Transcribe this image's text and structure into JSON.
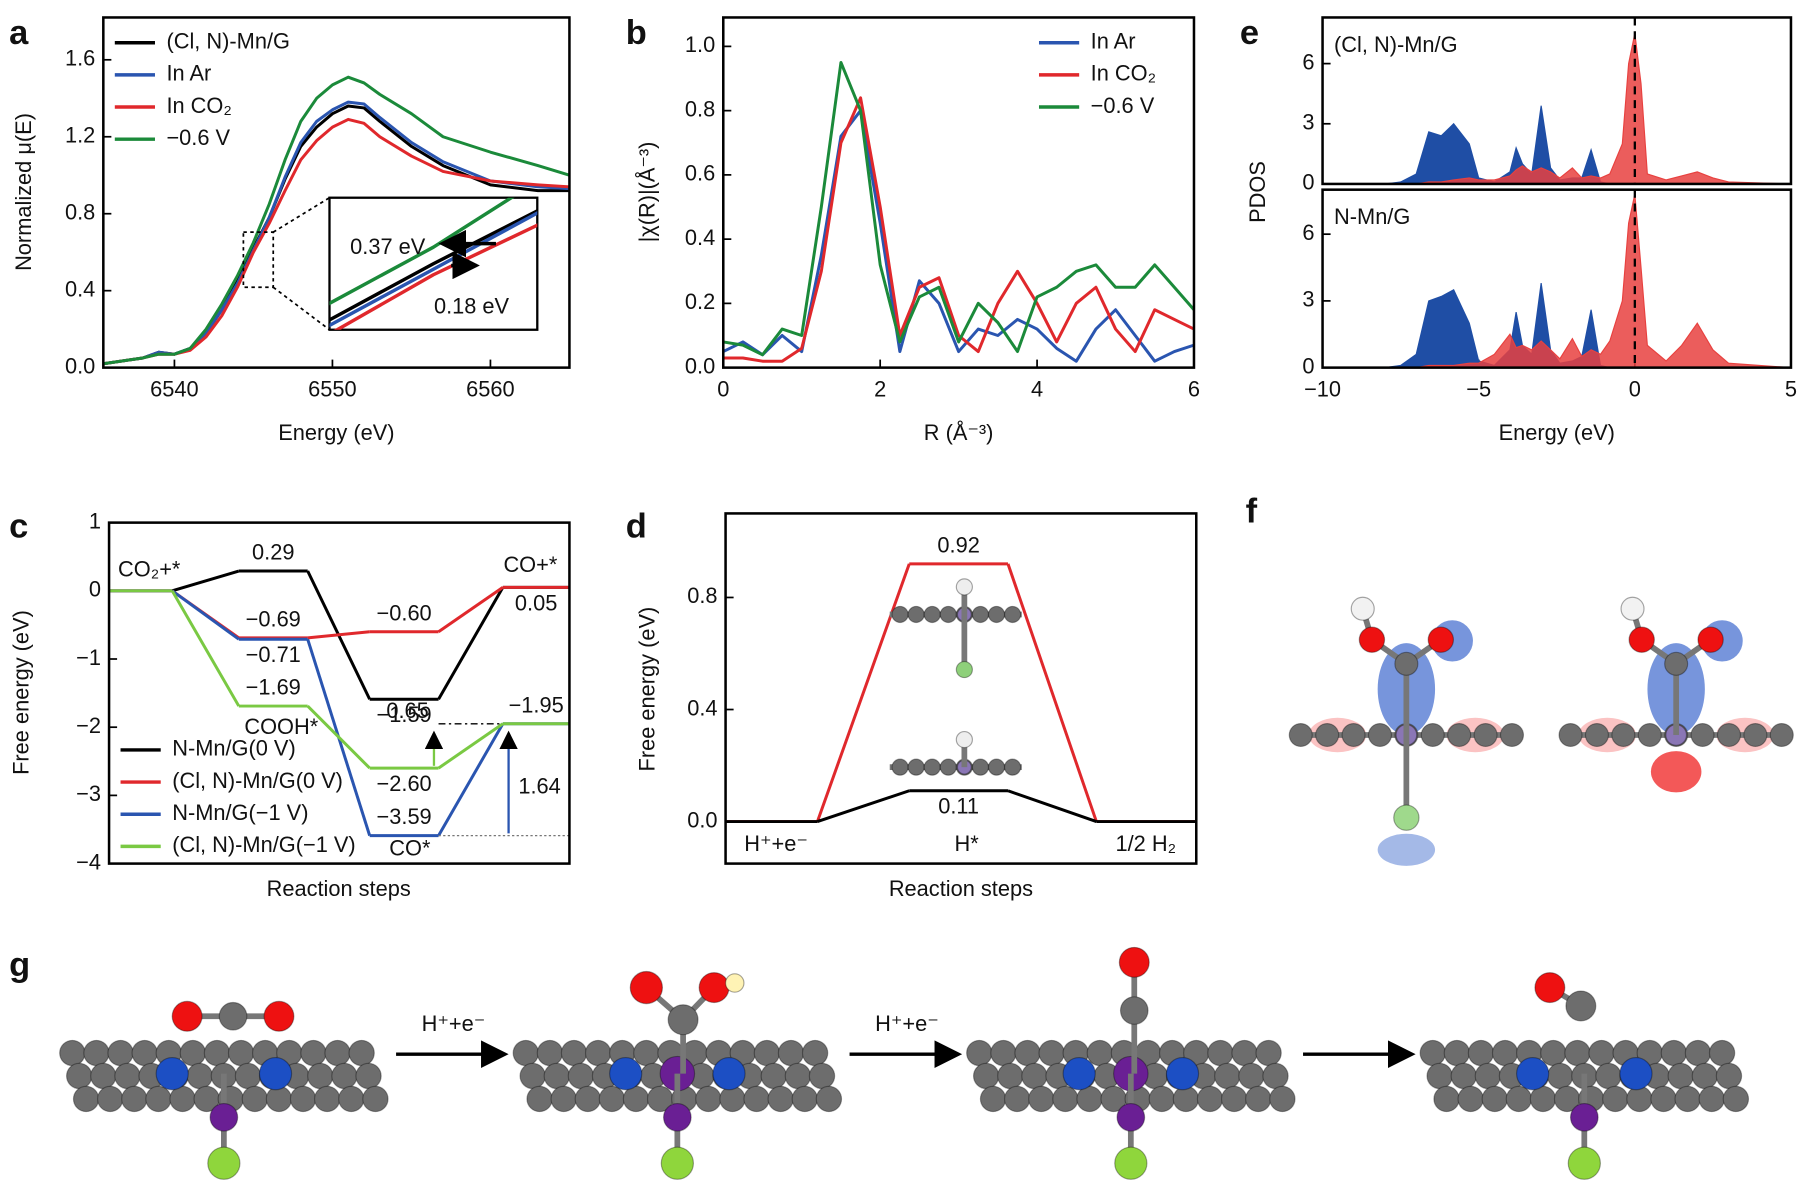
{
  "chart_data": [
    {
      "type": "line",
      "panel": "a",
      "xlabel": "Energy (eV)",
      "ylabel": "Normalized μ(E)",
      "x": [
        6535.5,
        6538,
        6539,
        6540,
        6541,
        6542,
        6543,
        6544,
        6545,
        6546,
        6547,
        6548,
        6549,
        6550,
        6551,
        6552,
        6553,
        6555,
        6557,
        6560,
        6563,
        6565
      ],
      "xlim": [
        6535.5,
        6565
      ],
      "xticks": [
        6540,
        6550,
        6560
      ],
      "ylim": [
        0,
        1.82
      ],
      "yticks": [
        {
          "value": 0,
          "label": "0.0"
        },
        0.4,
        0.8,
        1.2,
        1.6
      ],
      "legend": "upper left",
      "series": [
        {
          "name": "(Cl, N)-Mn/G",
          "color": "#000000",
          "values": [
            0.02,
            0.05,
            0.08,
            0.07,
            0.1,
            0.18,
            0.3,
            0.45,
            0.62,
            0.78,
            0.98,
            1.15,
            1.25,
            1.32,
            1.36,
            1.35,
            1.28,
            1.15,
            1.05,
            0.95,
            0.92,
            0.92
          ]
        },
        {
          "name": "In Ar",
          "color": "#2a55b0",
          "values": [
            0.02,
            0.05,
            0.08,
            0.07,
            0.1,
            0.18,
            0.3,
            0.44,
            0.61,
            0.78,
            0.99,
            1.17,
            1.28,
            1.34,
            1.38,
            1.37,
            1.3,
            1.17,
            1.07,
            0.97,
            0.94,
            0.93
          ]
        },
        {
          "name": "In CO₂",
          "color": "#e0282c",
          "values": [
            0.02,
            0.05,
            0.07,
            0.07,
            0.09,
            0.16,
            0.27,
            0.42,
            0.6,
            0.75,
            0.92,
            1.08,
            1.18,
            1.25,
            1.29,
            1.27,
            1.2,
            1.1,
            1.02,
            0.97,
            0.95,
            0.94
          ]
        },
        {
          "name": "−0.6 V",
          "color": "#1b8a3a",
          "values": [
            0.02,
            0.05,
            0.07,
            0.07,
            0.1,
            0.2,
            0.33,
            0.48,
            0.65,
            0.85,
            1.08,
            1.28,
            1.4,
            1.47,
            1.51,
            1.48,
            1.42,
            1.32,
            1.2,
            1.12,
            1.05,
            1.0
          ]
        }
      ],
      "inset": {
        "xlim": [
          6544.4,
          6545.6
        ],
        "ylim": [
          0.5,
          0.74
        ]
      },
      "annotations": [
        "0.37 eV",
        "0.18 eV"
      ]
    },
    {
      "type": "line",
      "panel": "b",
      "xlabel": "R (Å⁻³)",
      "ylabel": "|χ(R)|(Å⁻³)",
      "x": [
        0,
        0.25,
        0.5,
        0.75,
        1,
        1.25,
        1.5,
        1.75,
        2,
        2.25,
        2.5,
        2.75,
        3,
        3.25,
        3.5,
        3.75,
        4,
        4.25,
        4.5,
        4.75,
        5,
        5.25,
        5.5,
        5.75,
        6
      ],
      "xlim": [
        0,
        6
      ],
      "xticks": [
        0,
        2,
        4,
        6
      ],
      "ylim": [
        0,
        1.09
      ],
      "yticks": [
        {
          "value": 0,
          "label": "0.0"
        },
        0.2,
        0.4,
        0.6,
        0.8,
        {
          "value": 1,
          "label": "1.0"
        }
      ],
      "legend": "upper right",
      "series": [
        {
          "name": "In Ar",
          "color": "#2a55b0",
          "values": [
            0.05,
            0.08,
            0.04,
            0.1,
            0.05,
            0.35,
            0.72,
            0.8,
            0.45,
            0.05,
            0.27,
            0.2,
            0.05,
            0.12,
            0.1,
            0.15,
            0.12,
            0.06,
            0.02,
            0.12,
            0.18,
            0.1,
            0.02,
            0.05,
            0.07
          ]
        },
        {
          "name": "In CO₂",
          "color": "#e0282c",
          "values": [
            0.03,
            0.03,
            0.02,
            0.02,
            0.06,
            0.3,
            0.7,
            0.84,
            0.5,
            0.1,
            0.25,
            0.28,
            0.1,
            0.05,
            0.2,
            0.3,
            0.2,
            0.08,
            0.2,
            0.25,
            0.12,
            0.05,
            0.18,
            0.15,
            0.12
          ]
        },
        {
          "name": "−0.6 V",
          "color": "#1b8a3a",
          "values": [
            0.08,
            0.07,
            0.04,
            0.12,
            0.1,
            0.5,
            0.95,
            0.8,
            0.32,
            0.08,
            0.22,
            0.25,
            0.08,
            0.2,
            0.14,
            0.05,
            0.22,
            0.25,
            0.3,
            0.32,
            0.25,
            0.25,
            0.32,
            0.25,
            0.18
          ]
        }
      ]
    },
    {
      "type": "area",
      "panel": "e",
      "label": "(Cl, N)-Mn/G",
      "x": [
        -10,
        -8,
        -7.5,
        -7,
        -6.6,
        -6.2,
        -5.8,
        -5.3,
        -5,
        -4.5,
        -4,
        -3.8,
        -3.6,
        -3.3,
        -3,
        -2.7,
        -2.4,
        -2,
        -1.7,
        -1.4,
        -1.1,
        -0.8,
        -0.4,
        -0.2,
        0,
        0.2,
        0.4,
        1,
        1.5,
        2,
        2.5,
        3,
        5
      ],
      "xlim": [
        -10,
        5
      ],
      "ylim": [
        0,
        8.3
      ],
      "yticks": [
        0,
        3,
        6
      ],
      "vline": 0,
      "series": [
        {
          "color": "#1f4ea5",
          "values": [
            0,
            0,
            0.1,
            0.5,
            2.6,
            2.4,
            3.0,
            2.0,
            0.3,
            0.1,
            0.6,
            1.8,
            1.0,
            0.5,
            3.9,
            0.8,
            0.2,
            0.3,
            0.3,
            1.7,
            0.1,
            0,
            0,
            0,
            0,
            0,
            0,
            0,
            0,
            0,
            0,
            0,
            0
          ]
        },
        {
          "color": "#e8413f",
          "values": [
            0,
            0,
            0,
            0,
            0.1,
            0.1,
            0.2,
            0.3,
            0.2,
            0.2,
            0.4,
            0.7,
            0.9,
            0.6,
            0.8,
            0.6,
            0.3,
            0.8,
            0.3,
            0.4,
            0.3,
            0.5,
            2.0,
            6.0,
            7.5,
            5,
            0.5,
            0.2,
            0.4,
            0.6,
            0.3,
            0.1,
            0
          ]
        }
      ]
    },
    {
      "type": "area",
      "label": "N-Mn/G",
      "xlabel": "Energy (eV)",
      "ylabel": "PDOS",
      "x": [
        -10,
        -8,
        -7.5,
        -7,
        -6.6,
        -6.2,
        -5.8,
        -5.3,
        -5,
        -4.5,
        -4,
        -3.8,
        -3.6,
        -3.3,
        -3,
        -2.7,
        -2.4,
        -2,
        -1.7,
        -1.4,
        -1.1,
        -0.8,
        -0.4,
        -0.2,
        0,
        0.2,
        0.4,
        1,
        1.5,
        2,
        2.5,
        3,
        5
      ],
      "xlim": [
        -10,
        5
      ],
      "xticks": [
        {
          "value": -10,
          "label": "−10"
        },
        {
          "value": -5,
          "label": "−5"
        },
        0,
        5
      ],
      "ylim": [
        0,
        8
      ],
      "yticks": [
        0,
        3,
        6
      ],
      "vline": 0,
      "series": [
        {
          "color": "#1f4ea5",
          "values": [
            0,
            0,
            0.1,
            0.6,
            3.0,
            3.2,
            3.5,
            2.0,
            0.3,
            0.1,
            0.8,
            2.5,
            1.0,
            0.6,
            3.8,
            0.8,
            0.2,
            0.3,
            0.5,
            2.6,
            0.1,
            0,
            0,
            0,
            0,
            0,
            0,
            0,
            0,
            0,
            0,
            0,
            0
          ]
        },
        {
          "color": "#e8413f",
          "values": [
            0,
            0,
            0,
            0,
            0.1,
            0.1,
            0.1,
            0.2,
            0.2,
            0.6,
            1.5,
            0.9,
            1.0,
            0.8,
            1.2,
            0.8,
            0.4,
            1.3,
            0.5,
            0.8,
            0.6,
            1.2,
            3,
            6.5,
            7.8,
            4.5,
            1.0,
            0.3,
            1.0,
            2.0,
            0.8,
            0.2,
            0
          ]
        }
      ]
    },
    {
      "type": "step",
      "panel": "c",
      "xlabel": "Reaction steps",
      "ylabel": "Free energy (eV)",
      "categories": [
        "CO₂+*",
        "COOH*",
        "CO*",
        "CO+*"
      ],
      "ylim": [
        -4,
        1
      ],
      "yticks": [
        1,
        0,
        {
          "value": -1,
          "label": "−1"
        },
        {
          "value": -2,
          "label": "−2"
        },
        {
          "value": -3,
          "label": "−3"
        },
        {
          "value": -4,
          "label": "−4"
        }
      ],
      "legend": "lower left",
      "series": [
        {
          "name": "N-Mn/G(0 V)",
          "color": "#000000",
          "values": [
            0,
            0.29,
            -1.59,
            0.05
          ],
          "value_labels": [
            null,
            "0.29",
            "−1.59",
            "0.05"
          ]
        },
        {
          "name": "(Cl, N)-Mn/G(0 V)",
          "color": "#e0282c",
          "values": [
            0,
            -0.69,
            -0.6,
            0.05
          ],
          "value_labels": [
            null,
            "−0.69",
            "−0.60",
            null
          ]
        },
        {
          "name": "N-Mn/G(−1 V)",
          "color": "#2a55b0",
          "values": [
            0,
            -0.71,
            -3.59,
            -1.95
          ],
          "value_labels": [
            null,
            "−0.71",
            "−3.59",
            "−1.95"
          ]
        },
        {
          "name": "(Cl, N)-Mn/G(−1 V)",
          "color": "#7ac943",
          "values": [
            0,
            -1.69,
            -2.6,
            -1.95
          ],
          "value_labels": [
            null,
            "−1.69",
            "−2.60",
            null
          ]
        }
      ],
      "annotations": [
        {
          "text": "0.65",
          "color": "#7ac943"
        },
        {
          "text": "1.64",
          "color": "#2a55b0"
        }
      ]
    },
    {
      "type": "step",
      "panel": "d",
      "xlabel": "Reaction steps",
      "ylabel": "Free energy (eV)",
      "categories": [
        "H⁺+e⁻",
        "H*",
        "1/2 H₂"
      ],
      "ylim": [
        -0.15,
        1.1
      ],
      "yticks": [
        {
          "value": 0,
          "label": "0.0"
        },
        0.4,
        0.8
      ],
      "series": [
        {
          "color": "#e0282c",
          "values": [
            0,
            0.92,
            0
          ],
          "value_labels": [
            null,
            "0.92",
            null
          ]
        },
        {
          "color": "#000000",
          "values": [
            0,
            0.11,
            0
          ],
          "value_labels": [
            null,
            "0.11",
            null
          ]
        }
      ]
    }
  ],
  "figure": {
    "f_label": "f",
    "g_label": "g",
    "g_steps": [
      "H⁺+e⁻",
      "H⁺+e⁻"
    ]
  }
}
